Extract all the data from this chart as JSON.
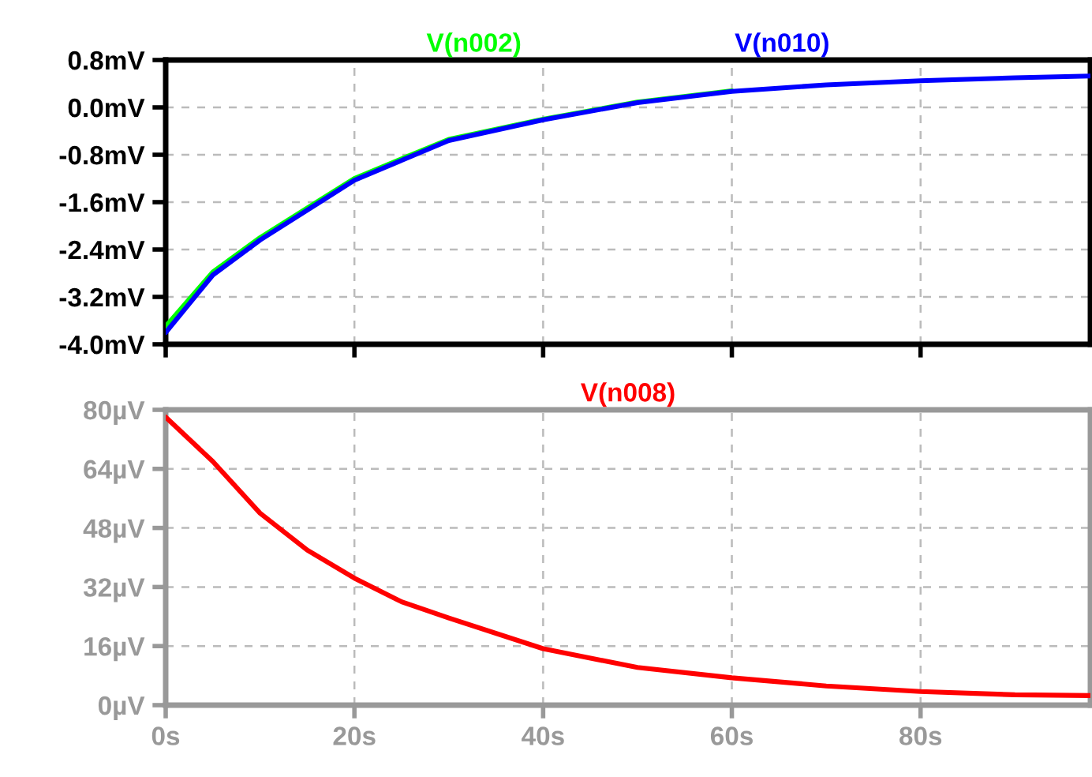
{
  "chart_data": [
    {
      "type": "line",
      "x": [
        0,
        5,
        10,
        20,
        30,
        40,
        50,
        60,
        70,
        80,
        90,
        98
      ],
      "series": [
        {
          "name": "V(n002)",
          "color": "#00ff00",
          "values": [
            -3.7,
            -2.78,
            -2.2,
            -1.2,
            -0.54,
            -0.2,
            0.09,
            0.28,
            null,
            null,
            null,
            null
          ]
        },
        {
          "name": "V(n010)",
          "color": "#0000ff",
          "values": [
            -3.8,
            -2.83,
            -2.24,
            -1.23,
            -0.56,
            -0.21,
            0.08,
            0.27,
            0.38,
            0.45,
            0.5,
            0.53
          ]
        }
      ],
      "xlim": [
        0,
        98
      ],
      "xticks": [
        {
          "value": 0,
          "label": null
        },
        {
          "value": 20,
          "label": null
        },
        {
          "value": 40,
          "label": null
        },
        {
          "value": 60,
          "label": null
        },
        {
          "value": 80,
          "label": null
        }
      ],
      "ylim": [
        -4.0,
        0.8
      ],
      "yticks": [
        {
          "value": -4.0,
          "label": "-4.0mV"
        },
        {
          "value": -3.2,
          "label": "-3.2mV"
        },
        {
          "value": -2.4,
          "label": "-2.4mV"
        },
        {
          "value": -1.6,
          "label": "-1.6mV"
        },
        {
          "value": -0.8,
          "label": "-0.8mV"
        },
        {
          "value": 0.0,
          "label": "0.0mV"
        },
        {
          "value": 0.8,
          "label": "0.8mV"
        }
      ],
      "tick_labels": "y",
      "grid": true,
      "line_style": "solid",
      "legend": "top"
    },
    {
      "type": "line",
      "x": [
        0,
        5,
        10,
        15,
        20,
        25,
        30,
        40,
        50,
        60,
        70,
        80,
        90,
        98
      ],
      "series": [
        {
          "name": "V(n008)",
          "color": "#ff0000",
          "values": [
            78,
            66,
            52,
            42,
            34.4,
            28,
            23.6,
            15.3,
            10.2,
            7.4,
            5.2,
            3.7,
            2.8,
            2.6
          ]
        }
      ],
      "xlim": [
        0,
        98
      ],
      "xticks": [
        {
          "value": 0,
          "label": "0s"
        },
        {
          "value": 20,
          "label": "20s"
        },
        {
          "value": 40,
          "label": "40s"
        },
        {
          "value": 60,
          "label": "60s"
        },
        {
          "value": 80,
          "label": "80s"
        }
      ],
      "ylim": [
        0,
        80
      ],
      "yticks": [
        {
          "value": 0,
          "label": "0µV"
        },
        {
          "value": 16,
          "label": "16µV"
        },
        {
          "value": 32,
          "label": "32µV"
        },
        {
          "value": 48,
          "label": "48µV"
        },
        {
          "value": 64,
          "label": "64µV"
        },
        {
          "value": 80,
          "label": "80µV"
        }
      ],
      "grid": true,
      "line_style": "solid",
      "legend": "top"
    }
  ]
}
